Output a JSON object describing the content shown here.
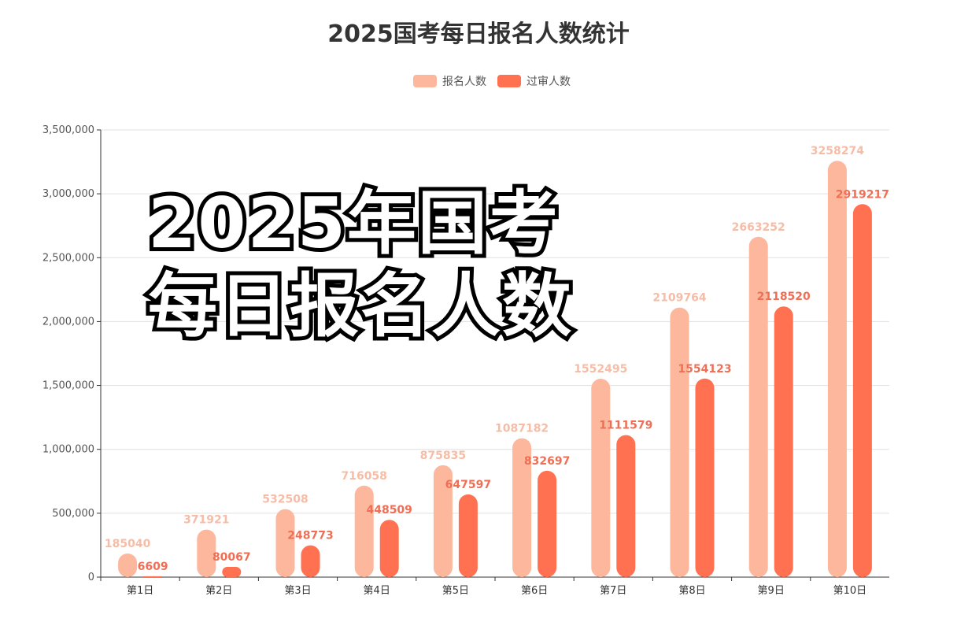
{
  "chart_data": {
    "type": "bar",
    "title": "2025国考每日报名人数统计",
    "categories": [
      "第1日",
      "第2日",
      "第3日",
      "第4日",
      "第5日",
      "第6日",
      "第7日",
      "第8日",
      "第9日",
      "第10日"
    ],
    "series": [
      {
        "name": "报名人数",
        "color": "#fdb79c",
        "values": [
          185040,
          371921,
          532508,
          716058,
          875835,
          1087182,
          1552495,
          2109764,
          2663252,
          3258274
        ]
      },
      {
        "name": "过审人数",
        "color": "#ff7150",
        "values": [
          6609,
          80067,
          248773,
          448509,
          647597,
          832697,
          1111579,
          1554123,
          2118520,
          2919217
        ]
      }
    ],
    "ylim": [
      0,
      3500000
    ],
    "yticks": [
      "0",
      "500,000",
      "1,000,000",
      "1,500,000",
      "2,000,000",
      "2,500,000",
      "3,000,000",
      "3,500,000"
    ],
    "grid": true,
    "legend_position": "top-center",
    "data_labels": true
  },
  "overlay": {
    "line1": "2025年国考",
    "line2": "每日报名人数"
  }
}
